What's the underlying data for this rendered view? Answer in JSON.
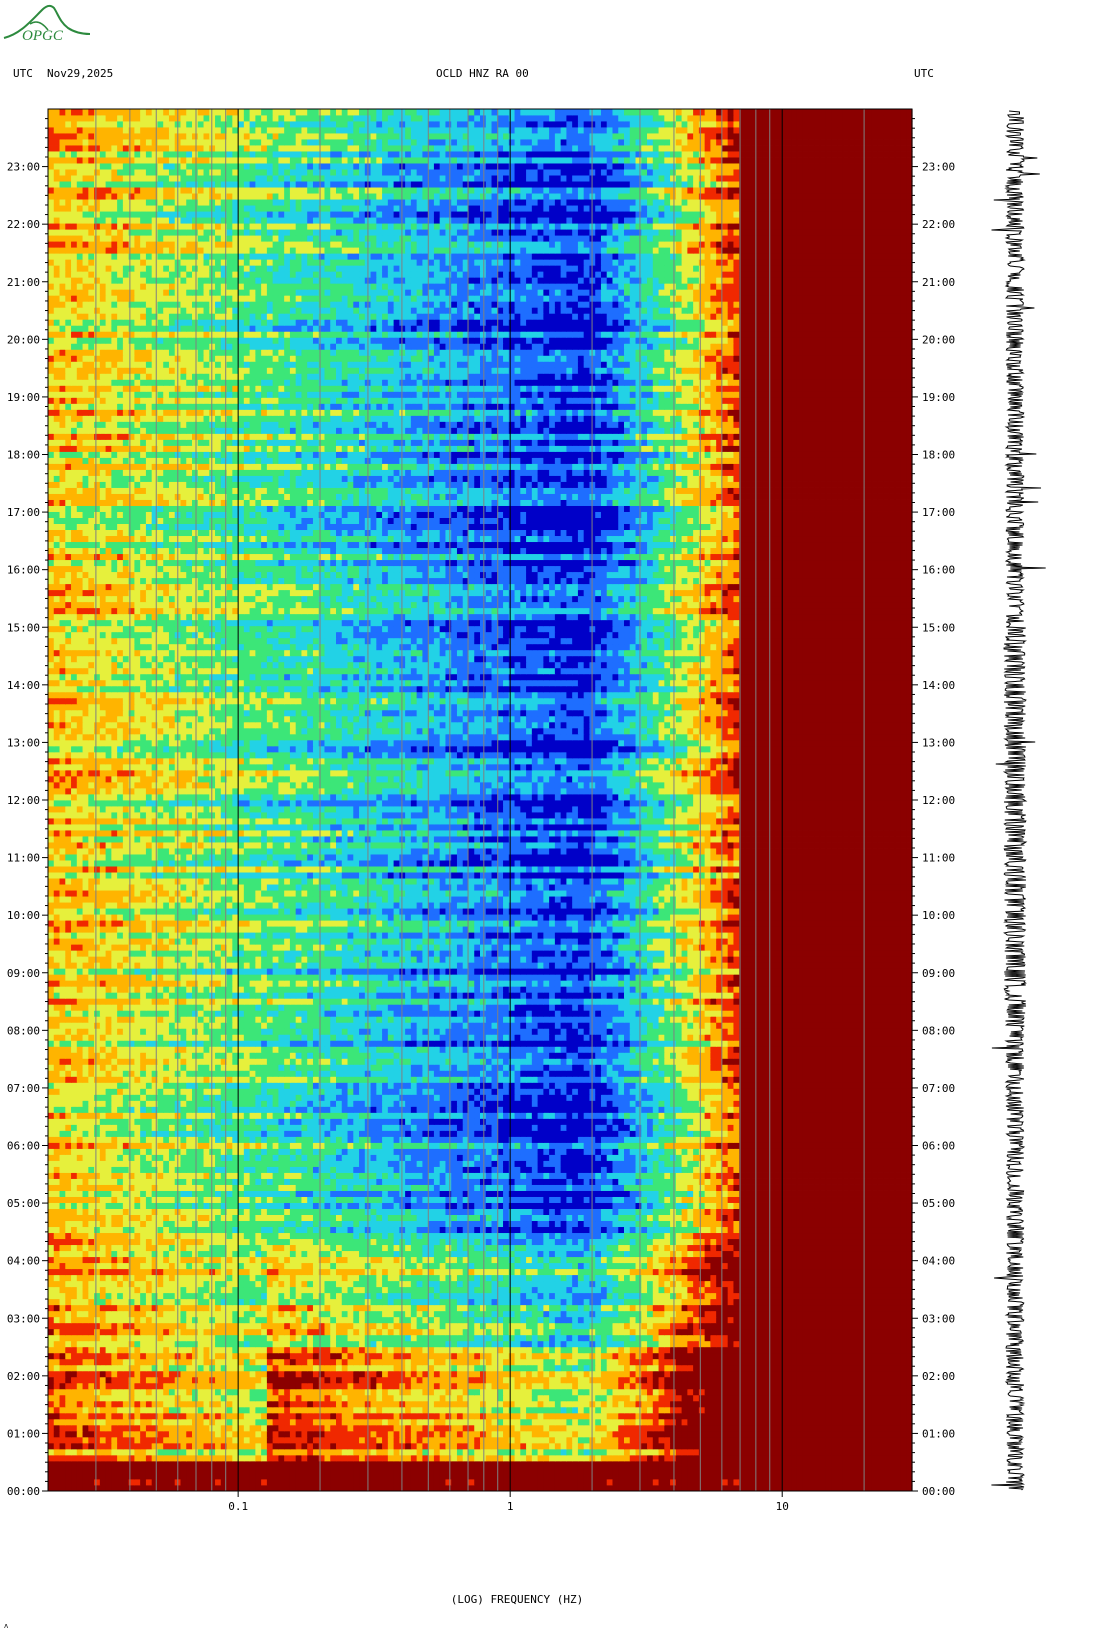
{
  "header": {
    "left_label": "UTC",
    "date": "Nov29,2025",
    "station": "OCLD HNZ RA 00",
    "right_label": "UTC"
  },
  "logo": {
    "text": "OPGC",
    "color": "#2d8a3e",
    "icon": "mountain-logo-icon"
  },
  "chart_data": {
    "type": "heatmap",
    "title": "OCLD HNZ RA 00",
    "xlabel": "(LOG) FREQUENCY (HZ)",
    "x_scale": "log",
    "x_range": [
      0.02,
      30
    ],
    "x_ticks": [
      {
        "value": 0.1,
        "label": "0.1"
      },
      {
        "value": 1,
        "label": "1"
      },
      {
        "value": 10,
        "label": "10"
      }
    ],
    "y_range_hours": [
      0,
      24
    ],
    "y_ticks_left": [
      "00:00",
      "01:00",
      "02:00",
      "03:00",
      "04:00",
      "05:00",
      "06:00",
      "07:00",
      "08:00",
      "09:00",
      "10:00",
      "11:00",
      "12:00",
      "13:00",
      "14:00",
      "15:00",
      "16:00",
      "17:00",
      "18:00",
      "19:00",
      "20:00",
      "21:00",
      "22:00",
      "23:00"
    ],
    "y_ticks_right": [
      "00:00",
      "01:00",
      "02:00",
      "03:00",
      "04:00",
      "05:00",
      "06:00",
      "07:00",
      "08:00",
      "09:00",
      "10:00",
      "11:00",
      "12:00",
      "13:00",
      "14:00",
      "15:00",
      "16:00",
      "17:00",
      "18:00",
      "19:00",
      "20:00",
      "21:00",
      "22:00",
      "23:00"
    ],
    "colormap": [
      "#0000c8",
      "#1e6eff",
      "#22d2e6",
      "#3ce678",
      "#e6f03c",
      "#ffb400",
      "#f02800",
      "#8b0000"
    ],
    "saturated_above_hz": 7,
    "grid": "vertical log-frequency lines",
    "waveform": "vertical seismogram trace on right"
  }
}
